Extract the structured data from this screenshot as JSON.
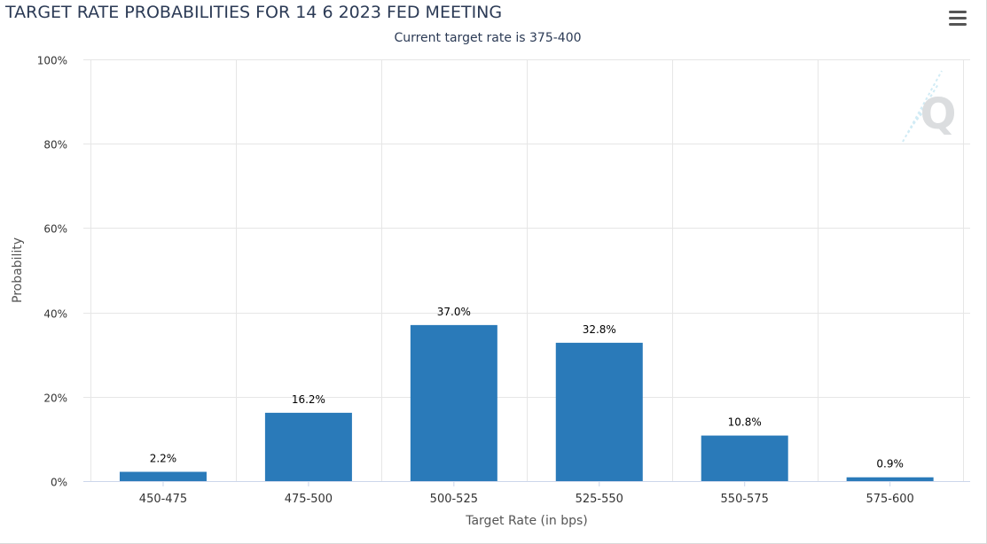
{
  "chart_title": "TARGET RATE PROBABILITIES FOR 14 6 2023 FED MEETING",
  "chart_subtitle": "Current target rate is 375-400",
  "colors": {
    "bar": "#2a7ab9",
    "grid": "#e6e6e6",
    "text": "#333333"
  },
  "menu_icon": "hamburger-menu-icon",
  "watermark_icon": "q-logo-watermark",
  "chart_data": {
    "type": "bar",
    "title": "TARGET RATE PROBABILITIES FOR 14 6 2023 FED MEETING",
    "subtitle": "Current target rate is 375-400",
    "xlabel": "Target Rate (in bps)",
    "ylabel": "Probability",
    "categories": [
      "450-475",
      "475-500",
      "500-525",
      "525-550",
      "550-575",
      "575-600"
    ],
    "values": [
      2.2,
      16.2,
      37.0,
      32.8,
      10.8,
      0.9
    ],
    "data_labels": [
      "2.2%",
      "16.2%",
      "37.0%",
      "32.8%",
      "10.8%",
      "0.9%"
    ],
    "ylim": [
      0,
      100
    ],
    "yticks": [
      0,
      20,
      40,
      60,
      80,
      100
    ],
    "ytick_labels": [
      "0%",
      "20%",
      "40%",
      "60%",
      "80%",
      "100%"
    ],
    "grid": true,
    "legend": "none"
  }
}
